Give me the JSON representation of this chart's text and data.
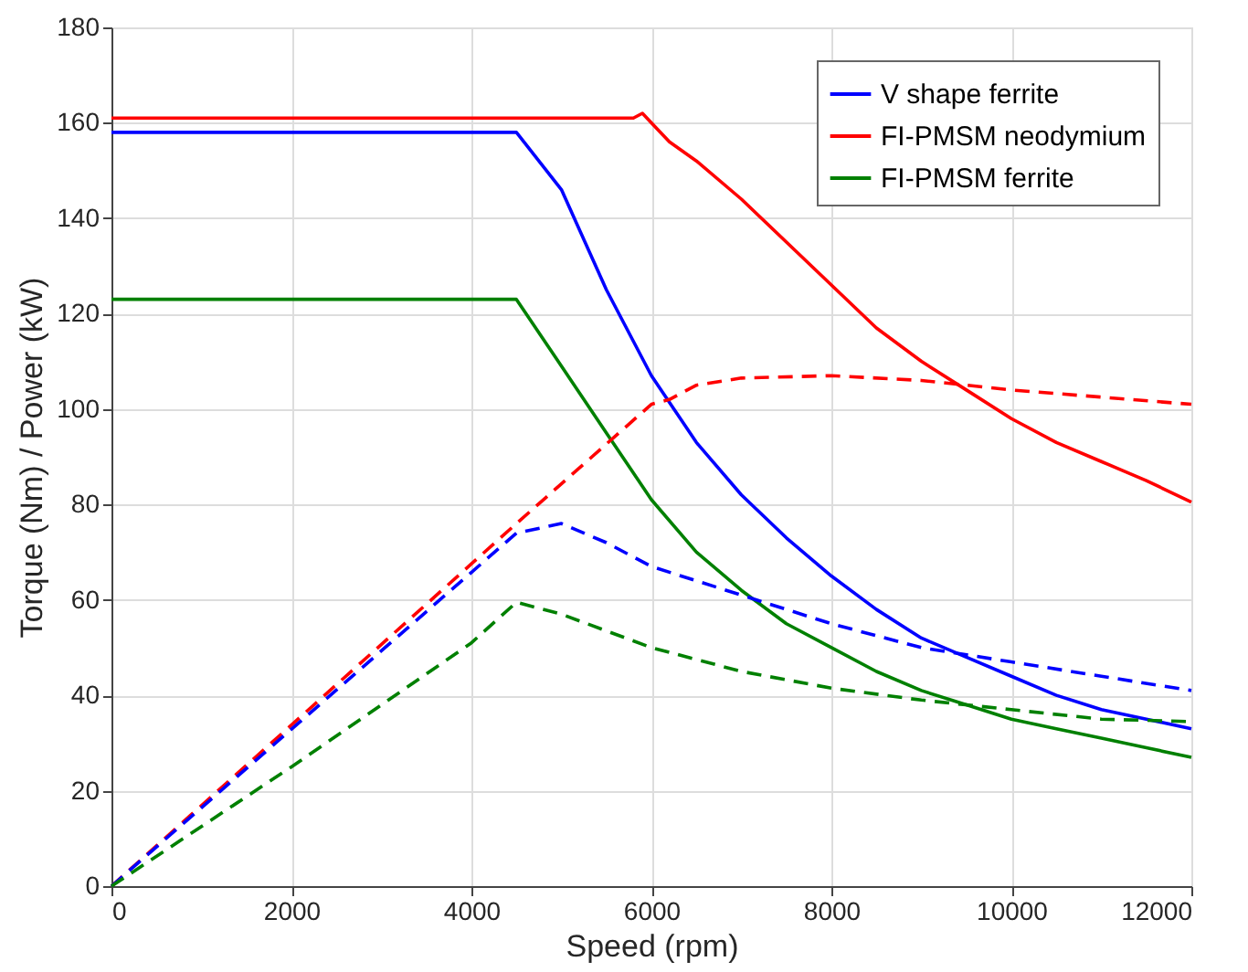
{
  "chart_data": {
    "type": "line",
    "xlabel": "Speed (rpm)",
    "ylabel": "Torque (Nm) / Power (kW)",
    "xlim": [
      0,
      12000
    ],
    "xticks": [
      0,
      2000,
      4000,
      6000,
      8000,
      10000,
      12000
    ],
    "ylim": [
      0,
      180
    ],
    "yticks": [
      0,
      20,
      40,
      60,
      80,
      100,
      120,
      140,
      160,
      180
    ],
    "grid": true,
    "legend": "top right",
    "marker": "none",
    "series": [
      {
        "name": "V shape ferrite",
        "color": "#0000ff",
        "line_style": "solid",
        "x": [
          0,
          4500,
          5000,
          5500,
          6000,
          6500,
          7000,
          7500,
          8000,
          8500,
          9000,
          9500,
          10000,
          10500,
          11000,
          11500,
          12000
        ],
        "values": [
          158,
          158,
          146,
          125,
          107,
          93,
          82,
          73,
          65,
          58,
          52,
          48,
          44,
          40,
          37,
          35,
          33
        ]
      },
      {
        "name": "FI-PMSM neodymium",
        "color": "#ff0000",
        "line_style": "solid",
        "x": [
          0,
          5800,
          5900,
          6000,
          6200,
          6500,
          7000,
          7500,
          8000,
          8500,
          9000,
          9500,
          10000,
          10500,
          11000,
          11500,
          12000
        ],
        "values": [
          161,
          161,
          162,
          160,
          156,
          152,
          144,
          135,
          126,
          117,
          110,
          104,
          98,
          93,
          89,
          85,
          80.5
        ]
      },
      {
        "name": "FI-PMSM ferrite",
        "color": "#008000",
        "line_style": "solid",
        "x": [
          0,
          4500,
          5000,
          5500,
          6000,
          6500,
          7000,
          7500,
          8000,
          8500,
          9000,
          9500,
          10000,
          10500,
          11000,
          11500,
          12000
        ],
        "values": [
          123,
          123,
          109,
          95,
          81,
          70,
          62,
          55,
          50,
          45,
          41,
          38,
          35,
          33,
          31,
          29,
          27
        ]
      },
      {
        "color": "#ff0000",
        "line_style": "dashed",
        "x": [
          0,
          4500,
          6000,
          6200,
          6500,
          7000,
          8000,
          9000,
          10000,
          11000,
          12000
        ],
        "values": [
          0,
          76,
          101,
          102,
          105,
          106.5,
          107,
          106,
          104,
          102.5,
          101
        ]
      },
      {
        "color": "#0000ff",
        "line_style": "dashed",
        "x": [
          0,
          4500,
          5000,
          5500,
          6000,
          7000,
          8000,
          9000,
          10000,
          11000,
          12000
        ],
        "values": [
          0,
          74,
          76,
          72,
          67,
          61,
          55,
          50,
          47,
          44,
          41
        ]
      },
      {
        "color": "#008000",
        "line_style": "dashed",
        "x": [
          0,
          2000,
          4000,
          4500,
          5000,
          6000,
          7000,
          8000,
          9000,
          10000,
          11000,
          12000
        ],
        "values": [
          0,
          25,
          51,
          59.5,
          57,
          50,
          45,
          41.5,
          39,
          37,
          35,
          34.5
        ]
      }
    ]
  }
}
